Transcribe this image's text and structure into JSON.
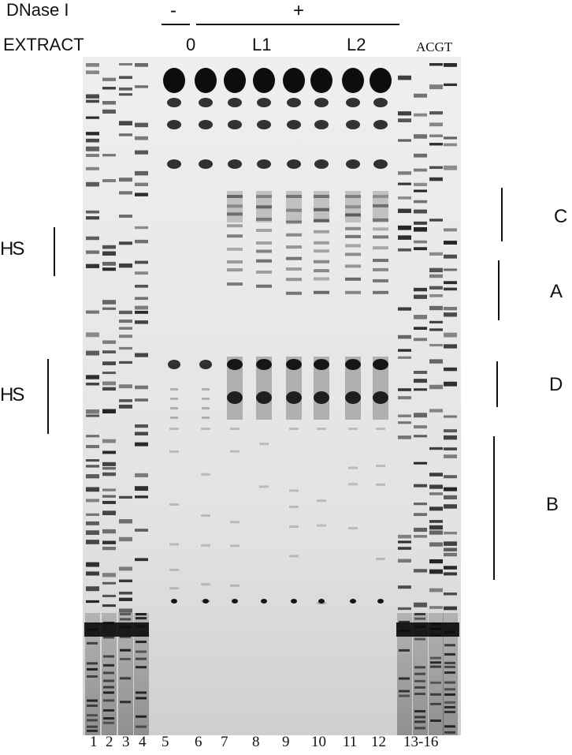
{
  "figure": {
    "dnase_label": "DNase I",
    "extract_label": "EXTRACT",
    "dnase_minus": "-",
    "dnase_plus": "+",
    "extract_groups": [
      "0",
      "L1",
      "L2"
    ],
    "ladder_label": "ACGT",
    "hs_labels": [
      "HS",
      "HS"
    ],
    "region_labels": [
      "C",
      "A",
      "D",
      "B"
    ],
    "lane_numbers": [
      "1",
      "2",
      "3",
      "4",
      "5",
      "6",
      "7",
      "8",
      "9",
      "10",
      "11",
      "12",
      "13-16"
    ]
  }
}
